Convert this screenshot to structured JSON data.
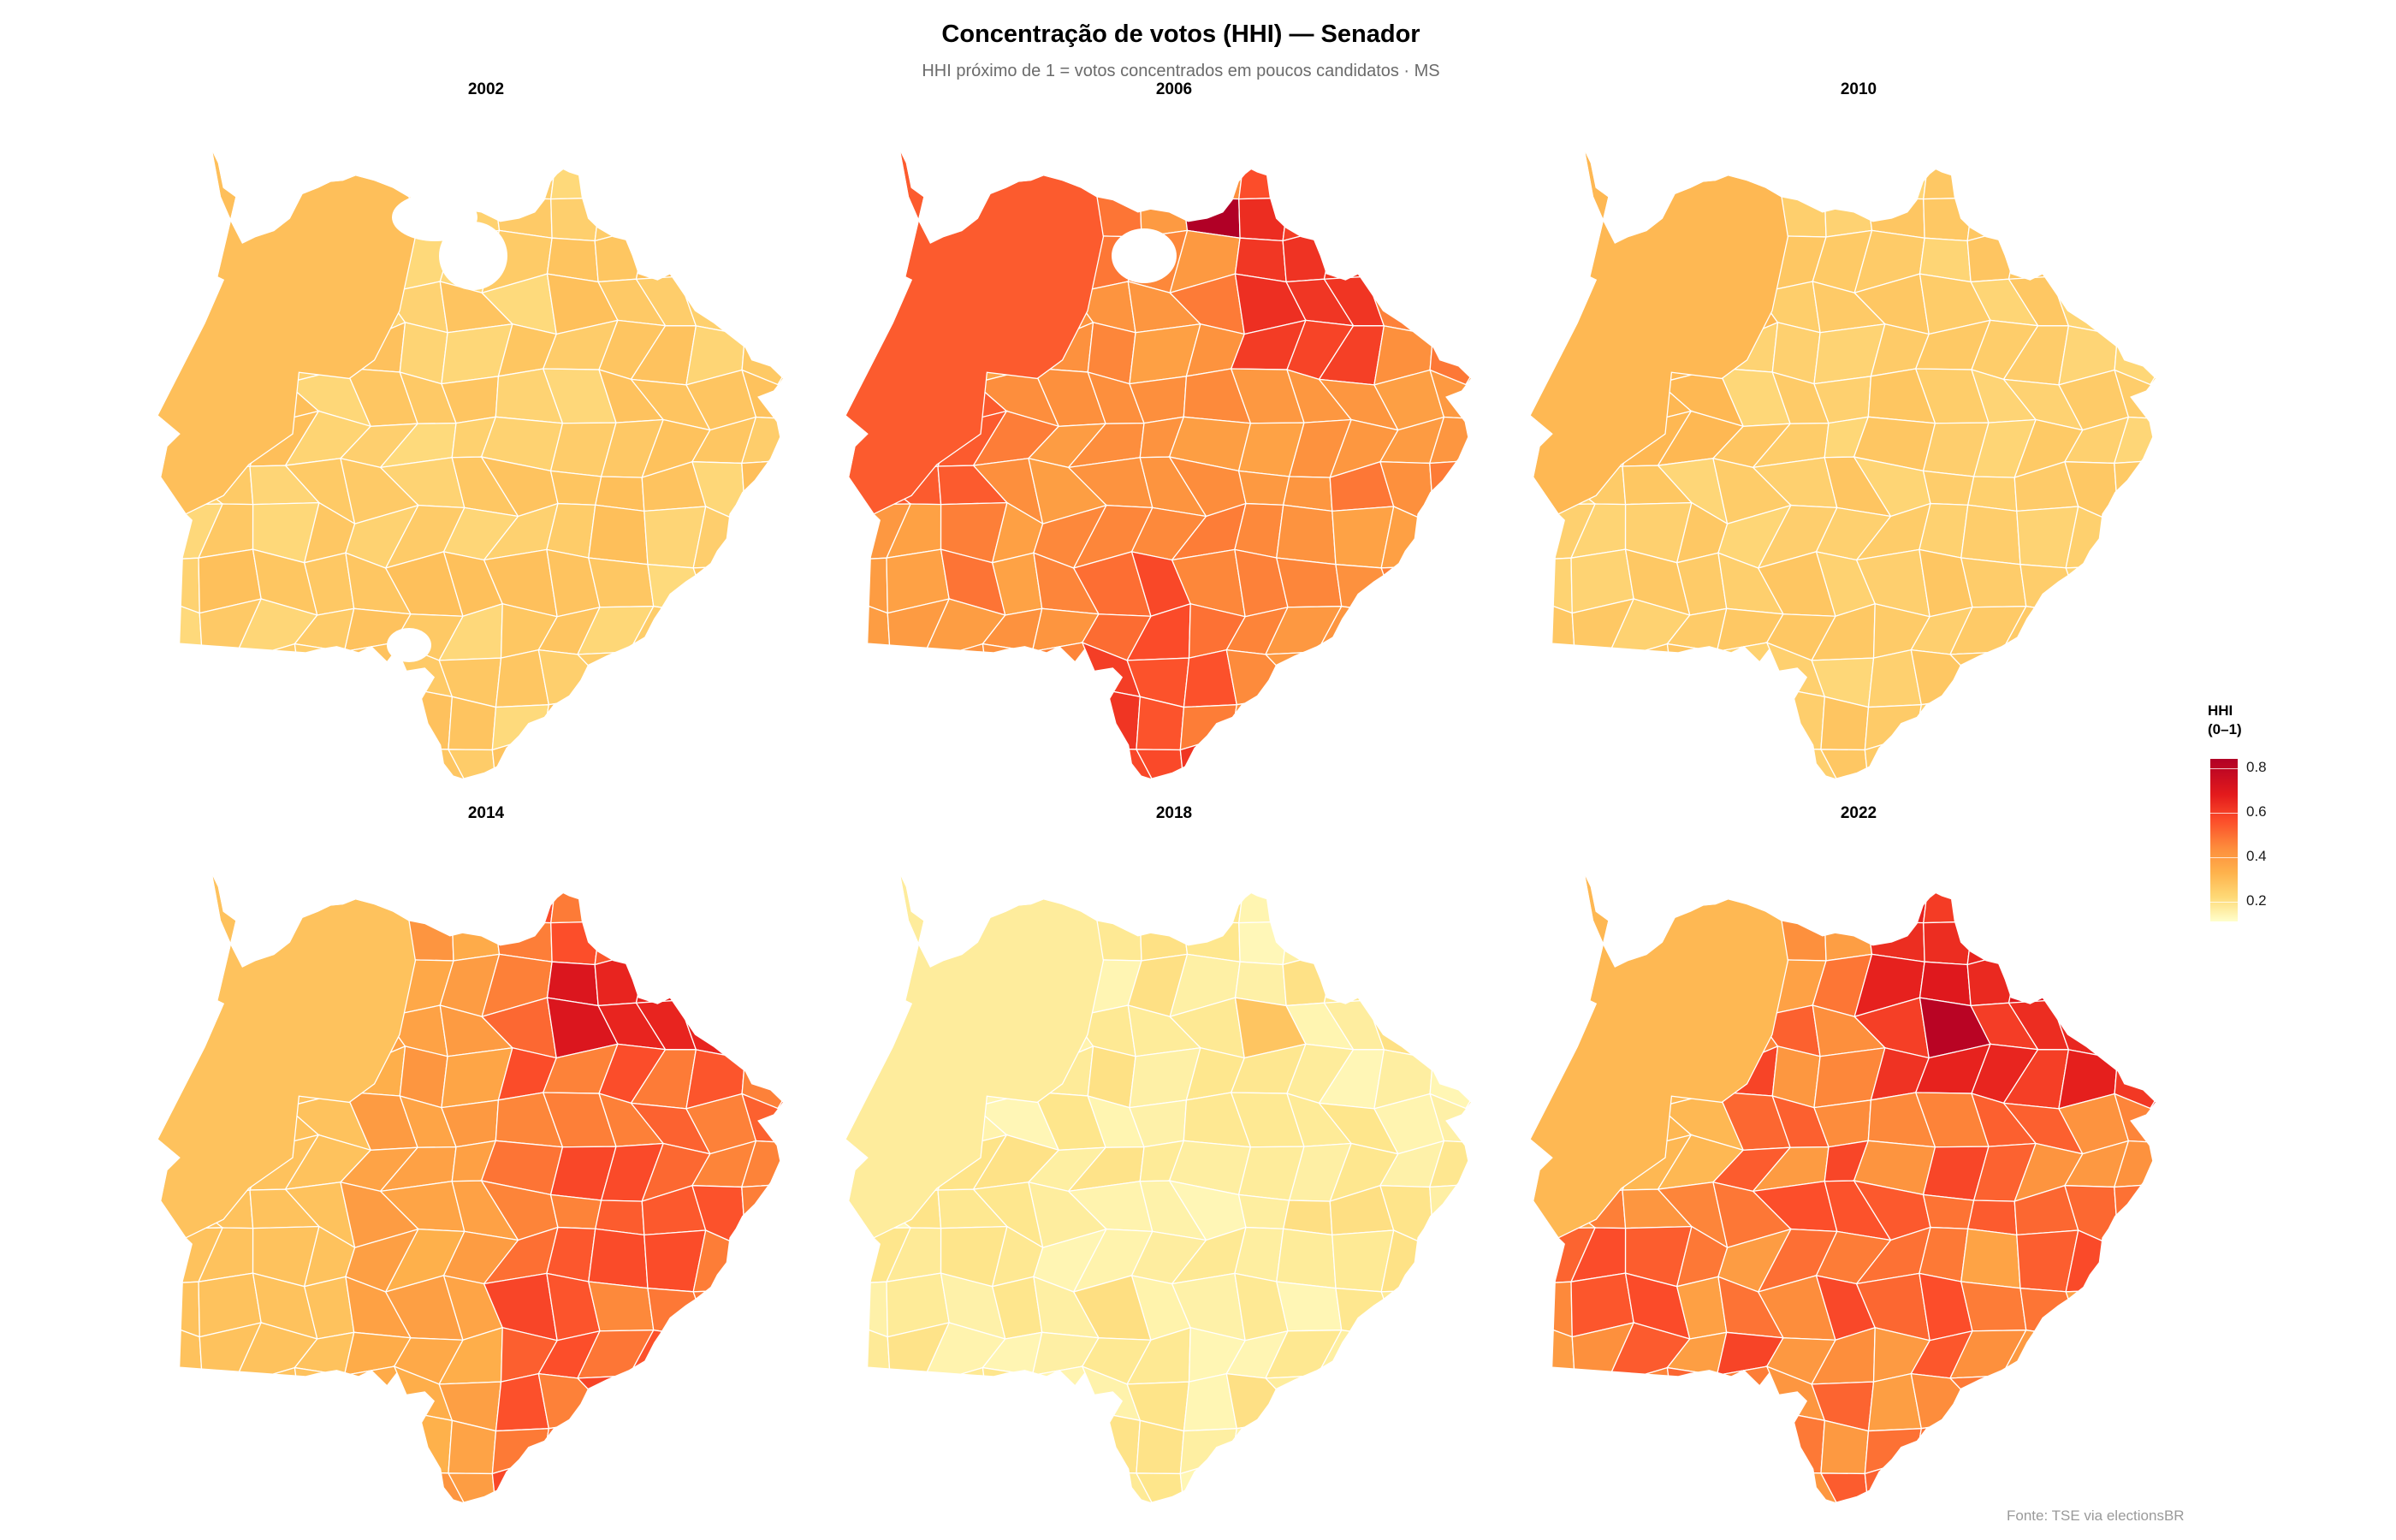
{
  "title": "Concentração de votos (HHI) — Senador",
  "subtitle": "HHI próximo de 1 = votos concentrados em poucos candidatos · MS",
  "caption": "Fonte: TSE via electionsBR",
  "legend": {
    "title_line1": "HHI",
    "title_line2": "(0–1)",
    "ticks": [
      "0.8",
      "0.6",
      "0.4",
      "0.2"
    ],
    "palette": [
      "#ffffcc",
      "#fed976",
      "#feb24c",
      "#fd8d3c",
      "#fc4e2a",
      "#e31a1c",
      "#b10026"
    ]
  },
  "panels": [
    {
      "year": "2002"
    },
    {
      "year": "2006"
    },
    {
      "year": "2010"
    },
    {
      "year": "2014"
    },
    {
      "year": "2018"
    },
    {
      "year": "2022"
    }
  ],
  "chart_data": {
    "type": "choropleth",
    "title": "Concentração de votos (HHI) — Senador",
    "subtitle": "HHI próximo de 1 = votos concentrados em poucos candidatos · MS",
    "facets": [
      "2002",
      "2006",
      "2010",
      "2014",
      "2018",
      "2022"
    ],
    "layout": {
      "rows": 2,
      "cols": 3
    },
    "region": "Mato Grosso do Sul (municípios)",
    "color_scale": {
      "name": "YlOrRd",
      "label": "HHI (0–1)",
      "ticks": [
        0.2,
        0.4,
        0.6,
        0.8
      ],
      "range": [
        0.15,
        0.82
      ]
    },
    "legend_position": "right",
    "approx_summary": [
      {
        "year": "2002",
        "typical_hhi": 0.33,
        "min": 0.28,
        "max": 0.4,
        "note": "uniform light orange; some municipalities missing (white)"
      },
      {
        "year": "2006",
        "typical_hhi": 0.5,
        "min": 0.38,
        "max": 0.82,
        "note": "orange overall, one dark-red municipality in north-east (~0.8), red cluster in south"
      },
      {
        "year": "2010",
        "typical_hhi": 0.3,
        "min": 0.27,
        "max": 0.38,
        "note": "uniform pale orange; large north-west municipality ~0.37"
      },
      {
        "year": "2014",
        "typical_hhi": 0.42,
        "min": 0.33,
        "max": 0.7,
        "note": "west pale (~0.35), east darker orange/red (0.5–0.7)"
      },
      {
        "year": "2018",
        "typical_hhi": 0.22,
        "min": 0.17,
        "max": 0.34,
        "note": "very pale yellow overall; one municipality ~0.34"
      },
      {
        "year": "2022",
        "typical_hhi": 0.5,
        "min": 0.36,
        "max": 0.8,
        "note": "orange/red; dark red municipality in north-east (~0.8)"
      }
    ],
    "caption": "Fonte: TSE via electionsBR"
  }
}
